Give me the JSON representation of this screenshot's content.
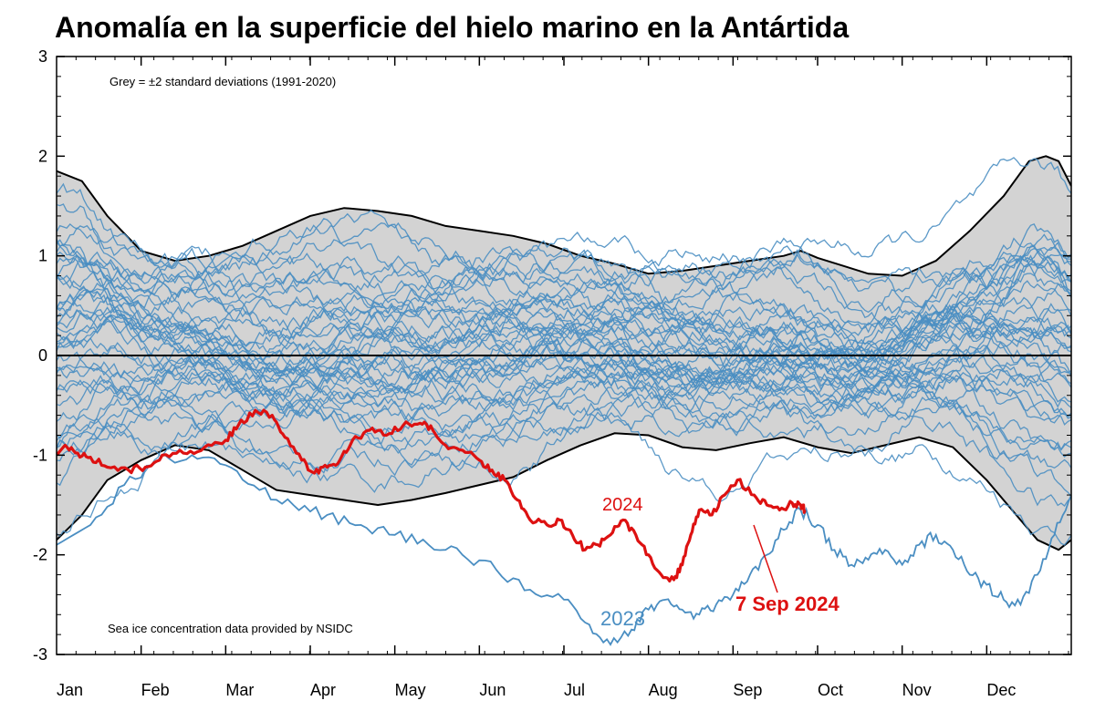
{
  "chart_data": {
    "type": "line",
    "title": "Anomalía en la superficie del hielo marino en la Antártida",
    "ylim": [
      -3,
      3
    ],
    "xlim": [
      0,
      12
    ],
    "yticks": [
      "3",
      "2",
      "1",
      "0",
      "-1",
      "-2",
      "-3"
    ],
    "month_labels": [
      "Jan",
      "Feb",
      "Mar",
      "Apr",
      "May",
      "Jun",
      "Jul",
      "Aug",
      "Sep",
      "Oct",
      "Nov",
      "Dec"
    ],
    "grid": false,
    "notes": {
      "grey_band": "Grey = ±2 standard deviations (1991-2020)",
      "source": "Sea ice concentration data provided by NSIDC"
    },
    "labels": {
      "year_2024": "2024",
      "year_2023": "2023",
      "date_callout": "7 Sep 2024"
    },
    "colors": {
      "band_fill": "#d3d3d3",
      "band_edge": "#000000",
      "history": "#4a8ec2",
      "year_2023": "#4a8ec2",
      "year_2024": "#dd1111",
      "zero_line": "#000000"
    },
    "band_upper": [
      [
        0,
        1.85
      ],
      [
        0.3,
        1.75
      ],
      [
        0.6,
        1.4
      ],
      [
        1.0,
        1.05
      ],
      [
        1.4,
        0.95
      ],
      [
        1.8,
        1.0
      ],
      [
        2.2,
        1.1
      ],
      [
        2.6,
        1.25
      ],
      [
        3.0,
        1.4
      ],
      [
        3.4,
        1.48
      ],
      [
        3.8,
        1.45
      ],
      [
        4.2,
        1.4
      ],
      [
        4.6,
        1.3
      ],
      [
        5.0,
        1.25
      ],
      [
        5.4,
        1.2
      ],
      [
        5.8,
        1.12
      ],
      [
        6.2,
        1.0
      ],
      [
        6.6,
        0.92
      ],
      [
        7.0,
        0.82
      ],
      [
        7.4,
        0.85
      ],
      [
        7.8,
        0.9
      ],
      [
        8.2,
        0.95
      ],
      [
        8.6,
        1.0
      ],
      [
        8.8,
        1.05
      ],
      [
        9.0,
        0.98
      ],
      [
        9.3,
        0.9
      ],
      [
        9.6,
        0.82
      ],
      [
        10.0,
        0.8
      ],
      [
        10.4,
        0.95
      ],
      [
        10.8,
        1.25
      ],
      [
        11.2,
        1.6
      ],
      [
        11.5,
        1.95
      ],
      [
        11.7,
        2.0
      ],
      [
        11.85,
        1.95
      ],
      [
        12.0,
        1.7
      ]
    ],
    "band_lower": [
      [
        0,
        -1.85
      ],
      [
        0.3,
        -1.6
      ],
      [
        0.6,
        -1.25
      ],
      [
        1.0,
        -1.05
      ],
      [
        1.4,
        -0.9
      ],
      [
        1.8,
        -0.95
      ],
      [
        2.2,
        -1.15
      ],
      [
        2.6,
        -1.35
      ],
      [
        3.0,
        -1.4
      ],
      [
        3.4,
        -1.45
      ],
      [
        3.8,
        -1.5
      ],
      [
        4.2,
        -1.45
      ],
      [
        4.6,
        -1.38
      ],
      [
        5.0,
        -1.3
      ],
      [
        5.4,
        -1.22
      ],
      [
        5.8,
        -1.05
      ],
      [
        6.2,
        -0.9
      ],
      [
        6.6,
        -0.78
      ],
      [
        7.0,
        -0.8
      ],
      [
        7.4,
        -0.92
      ],
      [
        7.8,
        -0.95
      ],
      [
        8.2,
        -0.88
      ],
      [
        8.6,
        -0.82
      ],
      [
        9.0,
        -0.92
      ],
      [
        9.4,
        -0.98
      ],
      [
        9.8,
        -0.9
      ],
      [
        10.2,
        -0.82
      ],
      [
        10.6,
        -0.92
      ],
      [
        11.0,
        -1.25
      ],
      [
        11.3,
        -1.55
      ],
      [
        11.6,
        -1.85
      ],
      [
        11.85,
        -1.95
      ],
      [
        12.0,
        -1.85
      ]
    ],
    "series_2024": [
      [
        0,
        -1.0
      ],
      [
        0.1,
        -0.9
      ],
      [
        0.25,
        -0.98
      ],
      [
        0.4,
        -1.02
      ],
      [
        0.6,
        -1.12
      ],
      [
        0.85,
        -1.15
      ],
      [
        1.05,
        -1.12
      ],
      [
        1.25,
        -1.0
      ],
      [
        1.5,
        -0.98
      ],
      [
        1.75,
        -0.92
      ],
      [
        2.0,
        -0.85
      ],
      [
        2.15,
        -0.7
      ],
      [
        2.35,
        -0.55
      ],
      [
        2.55,
        -0.6
      ],
      [
        2.7,
        -0.82
      ],
      [
        2.9,
        -1.05
      ],
      [
        3.05,
        -1.18
      ],
      [
        3.2,
        -1.12
      ],
      [
        3.35,
        -1.05
      ],
      [
        3.5,
        -0.85
      ],
      [
        3.7,
        -0.75
      ],
      [
        3.9,
        -0.8
      ],
      [
        4.1,
        -0.7
      ],
      [
        4.3,
        -0.68
      ],
      [
        4.45,
        -0.75
      ],
      [
        4.6,
        -0.9
      ],
      [
        4.8,
        -0.95
      ],
      [
        5.0,
        -1.05
      ],
      [
        5.15,
        -1.15
      ],
      [
        5.3,
        -1.25
      ],
      [
        5.45,
        -1.45
      ],
      [
        5.6,
        -1.65
      ],
      [
        5.8,
        -1.7
      ],
      [
        5.95,
        -1.65
      ],
      [
        6.1,
        -1.8
      ],
      [
        6.25,
        -1.95
      ],
      [
        6.4,
        -1.9
      ],
      [
        6.55,
        -1.8
      ],
      [
        6.7,
        -1.65
      ],
      [
        6.85,
        -1.8
      ],
      [
        7.0,
        -2.0
      ],
      [
        7.15,
        -2.2
      ],
      [
        7.3,
        -2.25
      ],
      [
        7.4,
        -2.1
      ],
      [
        7.5,
        -1.8
      ],
      [
        7.6,
        -1.55
      ],
      [
        7.75,
        -1.6
      ],
      [
        7.9,
        -1.4
      ],
      [
        8.05,
        -1.25
      ],
      [
        8.25,
        -1.4
      ],
      [
        8.4,
        -1.5
      ],
      [
        8.55,
        -1.55
      ],
      [
        8.7,
        -1.48
      ],
      [
        8.8,
        -1.5
      ],
      [
        8.85,
        -1.55
      ]
    ],
    "series_2023": [
      [
        0,
        -1.9
      ],
      [
        0.4,
        -1.7
      ],
      [
        0.8,
        -1.3
      ],
      [
        1.2,
        -1.05
      ],
      [
        1.6,
        -1.0
      ],
      [
        2.0,
        -1.1
      ],
      [
        2.4,
        -1.35
      ],
      [
        2.8,
        -1.5
      ],
      [
        3.2,
        -1.6
      ],
      [
        3.6,
        -1.7
      ],
      [
        4.0,
        -1.8
      ],
      [
        4.4,
        -1.9
      ],
      [
        4.8,
        -2.0
      ],
      [
        5.2,
        -2.15
      ],
      [
        5.6,
        -2.35
      ],
      [
        6.0,
        -2.45
      ],
      [
        6.3,
        -2.7
      ],
      [
        6.55,
        -2.9
      ],
      [
        6.8,
        -2.75
      ],
      [
        7.0,
        -2.55
      ],
      [
        7.2,
        -2.45
      ],
      [
        7.4,
        -2.55
      ],
      [
        7.6,
        -2.6
      ],
      [
        7.8,
        -2.5
      ],
      [
        8.0,
        -2.4
      ],
      [
        8.2,
        -2.2
      ],
      [
        8.4,
        -2.0
      ],
      [
        8.6,
        -1.75
      ],
      [
        8.8,
        -1.55
      ],
      [
        9.0,
        -1.7
      ],
      [
        9.2,
        -1.95
      ],
      [
        9.4,
        -2.1
      ],
      [
        9.6,
        -2.05
      ],
      [
        9.8,
        -1.95
      ],
      [
        10.0,
        -2.1
      ],
      [
        10.2,
        -1.9
      ],
      [
        10.4,
        -1.8
      ],
      [
        10.6,
        -1.95
      ],
      [
        10.8,
        -2.2
      ],
      [
        11.0,
        -2.3
      ],
      [
        11.2,
        -2.45
      ],
      [
        11.4,
        -2.5
      ],
      [
        11.6,
        -2.2
      ],
      [
        11.8,
        -1.8
      ],
      [
        12.0,
        -1.4
      ]
    ]
  }
}
